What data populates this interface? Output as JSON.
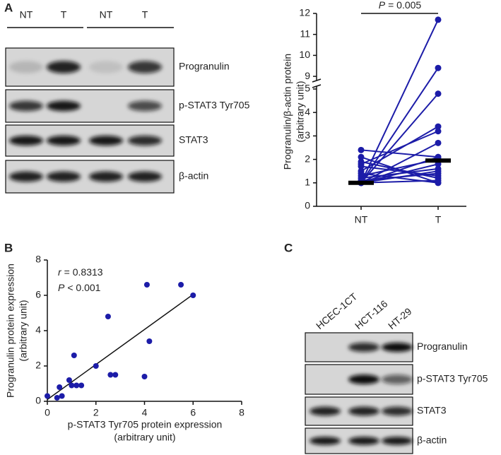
{
  "panels": {
    "a": "A",
    "b": "B",
    "c": "C"
  },
  "blot_a": {
    "lanes": [
      "NT",
      "T",
      "NT",
      "T"
    ],
    "rows": [
      "Progranulin",
      "p-STAT3 Tyr705",
      "STAT3",
      "β-actin"
    ]
  },
  "blot_c": {
    "lanes": [
      "HCEC-1CT",
      "HCT-116",
      "HT-29"
    ],
    "rows": [
      "Progranulin",
      "p-STAT3 Tyr705",
      "STAT3",
      "β-actin"
    ]
  },
  "chart_data": [
    {
      "type": "paired",
      "categories": [
        "NT",
        "T"
      ],
      "pairs": [
        [
          1.0,
          11.7
        ],
        [
          1.0,
          9.4
        ],
        [
          1.0,
          4.8
        ],
        [
          1.5,
          3.4
        ],
        [
          1.8,
          3.2
        ],
        [
          1.0,
          2.7
        ],
        [
          2.4,
          2.1
        ],
        [
          2.1,
          1.0
        ],
        [
          1.7,
          1.3
        ],
        [
          1.3,
          2.0
        ],
        [
          1.0,
          1.8
        ],
        [
          1.2,
          1.6
        ],
        [
          1.0,
          1.5
        ],
        [
          1.9,
          1.2
        ],
        [
          1.0,
          1.1
        ],
        [
          1.4,
          1.0
        ],
        [
          1.0,
          2.1
        ],
        [
          1.1,
          1.4
        ]
      ],
      "medians": [
        1.0,
        1.95
      ],
      "color": "#1c1ca8",
      "median_color": "#000000",
      "ylim_segments": [
        [
          0,
          5.12
        ],
        [
          8.8,
          12
        ]
      ],
      "yticks": [
        0,
        1,
        2,
        3,
        4,
        5,
        9,
        10,
        11,
        12
      ],
      "ylabel": [
        "Progranulin/β-actin protein",
        "(arbitrary unit)"
      ],
      "annotation": {
        "symbol": "P",
        "text": "= 0.005"
      }
    },
    {
      "type": "scatter",
      "x": [
        0,
        0.4,
        0.5,
        0.6,
        0.9,
        1.0,
        1.1,
        1.2,
        1.4,
        2.0,
        2.5,
        2.6,
        2.8,
        4.0,
        4.1,
        4.2,
        5.5,
        6.0
      ],
      "values": [
        0.3,
        0.2,
        0.8,
        0.3,
        1.2,
        0.9,
        2.6,
        0.9,
        0.9,
        2.0,
        4.8,
        1.5,
        1.5,
        1.4,
        6.6,
        3.4,
        6.6,
        6.0
      ],
      "color": "#1c1ca8",
      "fit": {
        "x": [
          0,
          6
        ],
        "y": [
          0.1,
          6.05
        ]
      },
      "xlim": [
        0,
        8
      ],
      "ylim": [
        0,
        8
      ],
      "xticks": [
        0,
        2,
        4,
        6,
        8
      ],
      "yticks": [
        0,
        2,
        4,
        6,
        8
      ],
      "xlabel": [
        "p-STAT3 Tyr705 protein expression",
        "(arbitrary unit)"
      ],
      "ylabel": [
        "Progranulin protein expression",
        "(arbitrary unit)"
      ],
      "annotations": [
        {
          "symbol": "r",
          "text": "= 0.8313"
        },
        {
          "symbol": "P",
          "text": "< 0.001"
        }
      ]
    }
  ]
}
